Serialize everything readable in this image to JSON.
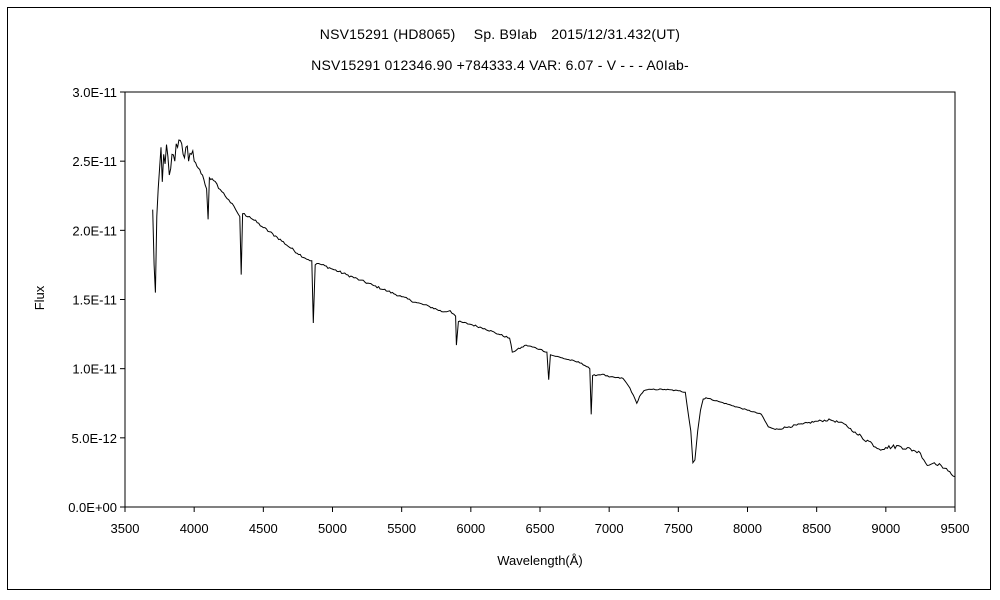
{
  "chart_data": {
    "type": "line",
    "title": "NSV15291 (HD8065)　 Sp. B9Iab　2015/12/31.432(UT)",
    "subtitle": "NSV15291 012346.90 +784333.4 VAR: 6.07 - V - - - A0Iab-",
    "xlabel": "Wavelength(Å)",
    "ylabel": "Flux",
    "xlim": [
      3500,
      9500
    ],
    "ylim": [
      0,
      3e-11
    ],
    "x_ticks": [
      3500,
      4000,
      4500,
      5000,
      5500,
      6000,
      6500,
      7000,
      7500,
      8000,
      8500,
      9000,
      9500
    ],
    "x_tick_labels": [
      "3500",
      "4000",
      "4500",
      "5000",
      "5500",
      "6000",
      "6500",
      "7000",
      "7500",
      "8000",
      "8500",
      "9000",
      "9500"
    ],
    "y_ticks": [
      0,
      5e-12,
      1e-11,
      1.5e-11,
      2e-11,
      2.5e-11,
      3e-11
    ],
    "y_tick_labels": [
      "0.0E+00",
      "5.0E-12",
      "1.0E-11",
      "1.5E-11",
      "2.0E-11",
      "2.5E-11",
      "3.0E-11"
    ],
    "grid": false,
    "legend": "none",
    "line_color": "#000000",
    "series": [
      {
        "x": [
          3700,
          3710,
          3720,
          3730,
          3740,
          3750,
          3760,
          3770,
          3780,
          3790,
          3800,
          3820,
          3840,
          3860,
          3880,
          3900,
          3920,
          3940,
          3960,
          3980,
          4000,
          4030,
          4060,
          4090,
          4101,
          4110,
          4140,
          4200,
          4250,
          4300,
          4330,
          4340,
          4350,
          4400,
          4500,
          4600,
          4700,
          4800,
          4850,
          4861,
          4875,
          4900,
          5000,
          5100,
          5200,
          5300,
          5400,
          5500,
          5600,
          5700,
          5800,
          5850,
          5890,
          5896,
          5910,
          6000,
          6100,
          6200,
          6280,
          6300,
          6400,
          6500,
          6550,
          6563,
          6575,
          6650,
          6800,
          6860,
          6870,
          6880,
          6950,
          7000,
          7100,
          7150,
          7200,
          7220,
          7250,
          7300,
          7400,
          7500,
          7550,
          7590,
          7605,
          7620,
          7640,
          7660,
          7680,
          7700,
          7800,
          7900,
          8000,
          8100,
          8150,
          8200,
          8300,
          8400,
          8500,
          8600,
          8700,
          8800,
          8900,
          8950,
          9000,
          9100,
          9200,
          9250,
          9300,
          9350,
          9400,
          9450,
          9500
        ],
        "y": [
          2.15e-11,
          1.75e-11,
          1.55e-11,
          2.1e-11,
          2.3e-11,
          2.45e-11,
          2.6e-11,
          2.35e-11,
          2.55e-11,
          2.48e-11,
          2.62e-11,
          2.4e-11,
          2.55e-11,
          2.5e-11,
          2.6e-11,
          2.65e-11,
          2.55e-11,
          2.6e-11,
          2.5e-11,
          2.55e-11,
          2.5e-11,
          2.45e-11,
          2.4e-11,
          2.3e-11,
          2.08e-11,
          2.38e-11,
          2.36e-11,
          2.28e-11,
          2.22e-11,
          2.15e-11,
          2.1e-11,
          1.68e-11,
          2.12e-11,
          2.1e-11,
          2.02e-11,
          1.95e-11,
          1.87e-11,
          1.8e-11,
          1.78e-11,
          1.33e-11,
          1.75e-11,
          1.76e-11,
          1.72e-11,
          1.68e-11,
          1.64e-11,
          1.6e-11,
          1.56e-11,
          1.52e-11,
          1.48e-11,
          1.45e-11,
          1.41e-11,
          1.42e-11,
          1.38e-11,
          1.17e-11,
          1.34e-11,
          1.32e-11,
          1.29e-11,
          1.25e-11,
          1.22e-11,
          1.12e-11,
          1.17e-11,
          1.14e-11,
          1.12e-11,
          9.2e-12,
          1.1e-11,
          1.08e-11,
          1.04e-11,
          1e-11,
          6.7e-12,
          9.5e-12,
          9.6e-12,
          9.4e-12,
          9.3e-12,
          8.6e-12,
          7.5e-12,
          8e-12,
          8.4e-12,
          8.5e-12,
          8.5e-12,
          8.4e-12,
          8.3e-12,
          5.5e-12,
          3.2e-12,
          3.4e-12,
          5.5e-12,
          7e-12,
          7.8e-12,
          7.9e-12,
          7.6e-12,
          7.3e-12,
          7e-12,
          6.7e-12,
          5.8e-12,
          5.6e-12,
          5.8e-12,
          6e-12,
          6.2e-12,
          6.3e-12,
          6e-12,
          5.2e-12,
          4.6e-12,
          4.2e-12,
          4.3e-12,
          4.4e-12,
          4.1e-12,
          3.9e-12,
          3e-12,
          3.2e-12,
          3e-12,
          2.6e-12,
          2.2e-12
        ]
      }
    ]
  }
}
